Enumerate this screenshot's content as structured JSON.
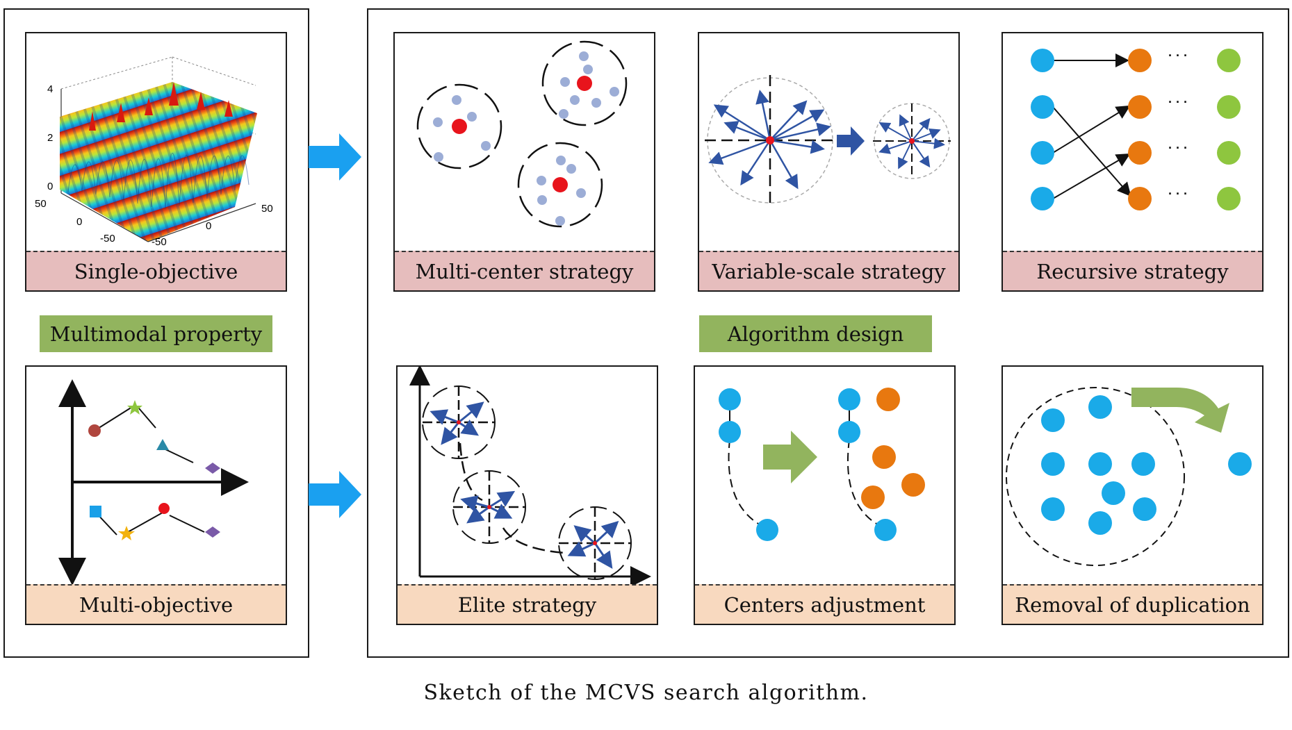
{
  "caption": "Sketch of the MCVS search algorithm.",
  "left_group": {
    "category_label": "Multimodal property",
    "panels": [
      {
        "label": "Single-objective",
        "axis_ticks": {
          "z": [
            "4",
            "2",
            "0"
          ],
          "x": [
            "50",
            "0",
            "-50"
          ],
          "y": [
            "50",
            "0",
            "-50"
          ]
        }
      },
      {
        "label": "Multi-objective"
      }
    ]
  },
  "right_group": {
    "category_label": "Algorithm design",
    "panels": [
      {
        "label": "Multi-center strategy"
      },
      {
        "label": "Variable-scale strategy"
      },
      {
        "label": "Recursive strategy",
        "ellipsis": "· · ·"
      },
      {
        "label": "Elite strategy"
      },
      {
        "label": "Centers adjustment"
      },
      {
        "label": "Removal of duplication"
      }
    ]
  },
  "colors": {
    "label_pink": "#e6bdbd",
    "label_peach": "#f8d9bf",
    "category_green": "#92b45e",
    "flow_arrow_blue": "#1aa0f0",
    "node_blue": "#1aaae8",
    "node_orange": "#e8780f",
    "node_green": "#8ec63f",
    "center_red": "#e8141c",
    "vector_blue": "#2f54a3"
  }
}
